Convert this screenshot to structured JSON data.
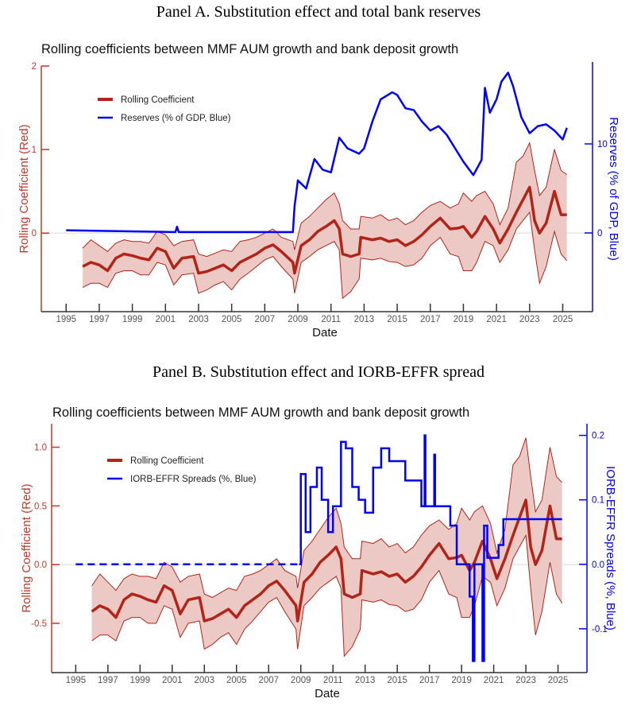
{
  "panels": [
    {
      "heading": "Panel A. Substitution effect and total bank reserves"
    },
    {
      "heading": "Panel B. Substitution effect and IORB-EFFR spread"
    }
  ],
  "colors": {
    "coefficient": "#b22418",
    "band_fill": "#ecc9c5",
    "right_series": "#0000ff",
    "left_axis": "#c0392b"
  },
  "coefficient_data": {
    "x": [
      1996.0,
      1996.5,
      1997.0,
      1997.5,
      1998.0,
      1998.5,
      1999.0,
      1999.5,
      2000.0,
      2000.5,
      2001.0,
      2001.5,
      2002.0,
      2002.7,
      2003.0,
      2003.5,
      2004.0,
      2004.5,
      2005.0,
      2005.5,
      2006.0,
      2006.5,
      2007.0,
      2007.5,
      2008.0,
      2008.7,
      2008.8,
      2009.2,
      2009.7,
      2010.2,
      2010.7,
      2011.2,
      2011.5,
      2011.7,
      2012.2,
      2012.7,
      2012.8,
      2013.5,
      2014.0,
      2014.5,
      2015.0,
      2015.5,
      2016.0,
      2016.5,
      2017.0,
      2017.6,
      2018.2,
      2018.7,
      2019.0,
      2019.5,
      2019.8,
      2020.3,
      2020.8,
      2021.2,
      2021.7,
      2022.2,
      2022.6,
      2023.0,
      2023.3,
      2023.6,
      2024.0,
      2024.5,
      2024.9,
      2025.25
    ],
    "coefficient": [
      -0.4,
      -0.35,
      -0.38,
      -0.45,
      -0.3,
      -0.25,
      -0.27,
      -0.3,
      -0.32,
      -0.18,
      -0.22,
      -0.42,
      -0.3,
      -0.28,
      -0.48,
      -0.46,
      -0.42,
      -0.38,
      -0.45,
      -0.35,
      -0.3,
      -0.25,
      -0.18,
      -0.14,
      -0.22,
      -0.35,
      -0.48,
      -0.15,
      -0.08,
      0.02,
      0.08,
      0.15,
      0.05,
      -0.25,
      -0.28,
      -0.25,
      -0.05,
      -0.08,
      -0.06,
      -0.1,
      -0.08,
      -0.15,
      -0.1,
      -0.02,
      0.08,
      0.18,
      0.05,
      0.06,
      0.08,
      -0.05,
      0.02,
      0.2,
      0.05,
      -0.12,
      0.05,
      0.25,
      0.4,
      0.55,
      0.15,
      0.0,
      0.12,
      0.5,
      0.22,
      0.22
    ],
    "lower": [
      -0.65,
      -0.6,
      -0.6,
      -0.65,
      -0.48,
      -0.45,
      -0.45,
      -0.5,
      -0.5,
      -0.35,
      -0.38,
      -0.62,
      -0.5,
      -0.48,
      -0.72,
      -0.68,
      -0.62,
      -0.58,
      -0.68,
      -0.55,
      -0.48,
      -0.4,
      -0.32,
      -0.28,
      -0.4,
      -0.55,
      -0.72,
      -0.35,
      -0.28,
      -0.2,
      -0.15,
      -0.1,
      -0.2,
      -0.78,
      -0.7,
      -0.55,
      -0.3,
      -0.32,
      -0.3,
      -0.34,
      -0.35,
      -0.4,
      -0.38,
      -0.3,
      -0.15,
      -0.05,
      -0.25,
      -0.28,
      -0.45,
      -0.45,
      -0.35,
      -0.1,
      -0.15,
      -0.35,
      -0.2,
      0.05,
      0.15,
      0.25,
      -0.2,
      -0.6,
      -0.4,
      0.02,
      -0.25,
      -0.33
    ],
    "upper": [
      -0.18,
      -0.08,
      -0.15,
      -0.22,
      -0.12,
      -0.08,
      -0.1,
      -0.1,
      -0.12,
      0.02,
      -0.02,
      -0.15,
      -0.1,
      -0.08,
      -0.25,
      -0.28,
      -0.24,
      -0.2,
      -0.22,
      -0.1,
      -0.08,
      -0.05,
      0.0,
      0.05,
      -0.05,
      -0.1,
      -0.2,
      0.12,
      0.2,
      0.3,
      0.4,
      0.48,
      0.35,
      0.15,
      0.05,
      0.05,
      0.2,
      0.18,
      0.22,
      0.15,
      0.18,
      0.1,
      0.15,
      0.25,
      0.33,
      0.38,
      0.3,
      0.35,
      0.48,
      0.38,
      0.45,
      0.5,
      0.35,
      0.1,
      0.3,
      0.85,
      0.92,
      1.08,
      0.75,
      0.45,
      0.55,
      1.0,
      0.75,
      0.7
    ]
  },
  "chart_data": [
    {
      "type": "line",
      "title": "Rolling coefficients between MMF AUM growth and bank deposit growth",
      "xlabel": "Date",
      "ylabel_left": "Rolling Coefficient (Red)",
      "ylabel_right": "Reserves (% of GDP, Blue)",
      "xlim": [
        1993.5,
        2026.8
      ],
      "ylim_left": [
        -0.94,
        2.0
      ],
      "ylim_right": [
        -8.84,
        18.75
      ],
      "x_ticks": [
        "1995",
        "1997",
        "1999",
        "2001",
        "2003",
        "2005",
        "2007",
        "2009",
        "2011",
        "2013",
        "2015",
        "2017",
        "2019",
        "2021",
        "2023",
        "2025"
      ],
      "y_left_ticks": [
        "2",
        "1",
        "0"
      ],
      "y_right_ticks": [
        "10",
        "0"
      ],
      "legend": {
        "position": "top-left",
        "entries": [
          "Rolling Coefficient",
          "Reserves (% of GDP, Blue)"
        ]
      },
      "series": [
        {
          "name": "Rolling Coefficient",
          "axis": "left",
          "source": "coefficient_data",
          "band": "lower-upper"
        },
        {
          "name": "Reserves (% of GDP, Blue)",
          "axis": "right",
          "x": [
            1995.0,
            2001.6,
            2001.7,
            2001.8,
            2008.7,
            2008.8,
            2009.0,
            2009.5,
            2010.0,
            2010.5,
            2011.0,
            2011.5,
            2012.0,
            2012.7,
            2013.0,
            2013.5,
            2014.0,
            2014.7,
            2015.0,
            2015.5,
            2016.0,
            2016.5,
            2017.0,
            2017.5,
            2018.0,
            2018.5,
            2019.0,
            2019.6,
            2020.1,
            2020.3,
            2020.6,
            2021.0,
            2021.3,
            2021.7,
            2022.0,
            2022.5,
            2023.0,
            2023.5,
            2024.0,
            2024.5,
            2025.0,
            2025.25
          ],
          "y": [
            0.3,
            0.1,
            0.7,
            0.1,
            0.1,
            3.0,
            5.9,
            5.0,
            8.3,
            7.1,
            6.8,
            10.7,
            9.5,
            8.9,
            9.5,
            12.5,
            15.0,
            15.8,
            15.5,
            14.0,
            13.8,
            12.5,
            11.5,
            12.0,
            11.0,
            9.5,
            8.0,
            6.5,
            8.2,
            16.3,
            13.5,
            15.0,
            17.0,
            18.0,
            16.5,
            13.0,
            11.2,
            12.0,
            12.2,
            11.5,
            10.5,
            11.8
          ]
        }
      ]
    },
    {
      "type": "line",
      "title": "Rolling coefficients between MMF AUM growth and bank deposit growth",
      "xlabel": "Date",
      "ylabel_left": "Rolling Coefficient (Red)",
      "ylabel_right": "IORB-EFFR Spreads (%, Blue)",
      "xlim": [
        1993.5,
        2026.8
      ],
      "ylim_left": [
        -0.92,
        1.2
      ],
      "ylim_right": [
        -0.168,
        0.218
      ],
      "x_ticks": [
        "1995",
        "1997",
        "1999",
        "2001",
        "2003",
        "2005",
        "2007",
        "2009",
        "2011",
        "2013",
        "2015",
        "2017",
        "2019",
        "2021",
        "2023",
        "2025"
      ],
      "y_left_ticks": [
        "1.0",
        "0.5",
        "0.0",
        "-0.5"
      ],
      "y_right_ticks": [
        "0.2",
        "0.1",
        "0.0",
        "-0.1"
      ],
      "legend": {
        "position": "top-left",
        "entries": [
          "Rolling Coefficient",
          "IORB-EFFR Spreads (%, Blue)"
        ]
      },
      "series": [
        {
          "name": "Rolling Coefficient",
          "axis": "left",
          "source": "coefficient_data",
          "band": "lower-upper"
        },
        {
          "name": "IORB-EFFR Spreads (%, Blue)",
          "axis": "right",
          "x": [
            1995.0,
            2008.9,
            2009.0,
            2009.3,
            2009.6,
            2010.0,
            2010.3,
            2010.7,
            2011.0,
            2011.5,
            2011.8,
            2012.2,
            2012.6,
            2013.0,
            2013.5,
            2014.0,
            2014.5,
            2015.0,
            2015.5,
            2016.0,
            2016.5,
            2016.7,
            2016.75,
            2017.0,
            2017.3,
            2017.35,
            2018.0,
            2018.3,
            2018.7,
            2019.2,
            2019.5,
            2019.7,
            2019.8,
            2020.2,
            2020.3,
            2020.4,
            2020.6,
            2021.0,
            2021.3,
            2021.6,
            2025.25
          ],
          "y": [
            0.0,
            0.0,
            0.14,
            0.05,
            0.12,
            0.15,
            0.1,
            0.05,
            0.09,
            0.19,
            0.18,
            0.12,
            0.1,
            0.08,
            0.15,
            0.18,
            0.16,
            0.16,
            0.13,
            0.13,
            0.09,
            0.2,
            0.09,
            0.09,
            0.17,
            0.09,
            0.09,
            0.06,
            0.0,
            0.0,
            -0.05,
            -0.15,
            0.0,
            0.0,
            -0.15,
            0.06,
            0.01,
            0.01,
            0.03,
            0.07,
            0.07
          ]
        }
      ]
    }
  ]
}
